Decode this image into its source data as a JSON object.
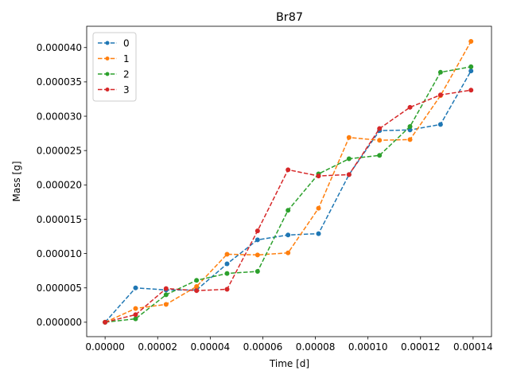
{
  "chart_data": {
    "type": "line",
    "title": "Br87",
    "xlabel": "Time [d]",
    "ylabel": "Mass [g]",
    "xlim": [
      -7e-06,
      0.000147
    ],
    "ylim": [
      -2.1e-06,
      4.31e-05
    ],
    "x_ticks": [
      {
        "value": 0.0,
        "label": "0.00000"
      },
      {
        "value": 2e-05,
        "label": "0.00002"
      },
      {
        "value": 4e-05,
        "label": "0.00004"
      },
      {
        "value": 6e-05,
        "label": "0.00006"
      },
      {
        "value": 8e-05,
        "label": "0.00008"
      },
      {
        "value": 0.0001,
        "label": "0.00010"
      },
      {
        "value": 0.00012,
        "label": "0.00012"
      },
      {
        "value": 0.00014,
        "label": "0.00014"
      }
    ],
    "y_ticks": [
      {
        "value": 0.0,
        "label": "0.000000"
      },
      {
        "value": 5e-06,
        "label": "0.000005"
      },
      {
        "value": 1e-05,
        "label": "0.000010"
      },
      {
        "value": 1.5e-05,
        "label": "0.000015"
      },
      {
        "value": 2e-05,
        "label": "0.000020"
      },
      {
        "value": 2.5e-05,
        "label": "0.000025"
      },
      {
        "value": 3e-05,
        "label": "0.000030"
      },
      {
        "value": 3.5e-05,
        "label": "0.000035"
      },
      {
        "value": 4e-05,
        "label": "0.000040"
      }
    ],
    "grid": false,
    "legend_position": "top-left",
    "x": [
      0.0,
      1.16e-05,
      2.32e-05,
      3.48e-05,
      4.64e-05,
      5.8e-05,
      6.96e-05,
      8.12e-05,
      9.28e-05,
      0.0001044,
      0.000116,
      0.0001276,
      0.0001392
    ],
    "series": [
      {
        "name": "0",
        "color": "#1f77b4",
        "line_style": "dashed",
        "marker": "circle",
        "values": [
          0.0,
          5e-06,
          4.7e-06,
          4.7e-06,
          8.5e-06,
          1.2e-05,
          1.27e-05,
          1.29e-05,
          2.15e-05,
          2.79e-05,
          2.8e-05,
          2.88e-05,
          3.66e-05
        ]
      },
      {
        "name": "1",
        "color": "#ff7f0e",
        "line_style": "dashed",
        "marker": "circle",
        "values": [
          0.0,
          2e-06,
          2.6e-06,
          5.2e-06,
          9.9e-06,
          9.8e-06,
          1.01e-05,
          1.66e-05,
          2.69e-05,
          2.65e-05,
          2.66e-05,
          3.3e-05,
          4.09e-05
        ]
      },
      {
        "name": "2",
        "color": "#2ca02c",
        "line_style": "dashed",
        "marker": "circle",
        "values": [
          0.0,
          5e-07,
          4e-06,
          6.1e-06,
          7.1e-06,
          7.4e-06,
          1.63e-05,
          2.16e-05,
          2.38e-05,
          2.43e-05,
          2.85e-05,
          3.64e-05,
          3.72e-05
        ]
      },
      {
        "name": "3",
        "color": "#d62728",
        "line_style": "dashed",
        "marker": "circle",
        "values": [
          0.0,
          1.1e-06,
          4.9e-06,
          4.6e-06,
          4.8e-06,
          1.33e-05,
          2.22e-05,
          2.13e-05,
          2.15e-05,
          2.82e-05,
          3.13e-05,
          3.31e-05,
          3.38e-05
        ]
      }
    ]
  }
}
